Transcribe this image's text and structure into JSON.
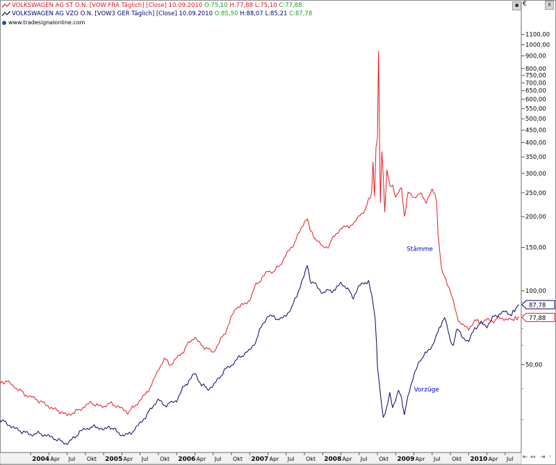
{
  "legend": [
    {
      "name": "VOLKSWAGEN AG ST O.N. [VOW FRA  Täglich] [Close]",
      "date": "10.09.2010",
      "open": "O:75,10",
      "high": "H:77,88",
      "low": "L:75,10",
      "close": "C:77,88",
      "color": "#e8141c",
      "close_color": "#1a9a1a"
    },
    {
      "name": "VOLKSWAGEN AG VZO O.N. [VOW3 GER  Täglich] [Close]",
      "date": "10.09.2010",
      "open": "O:85,50",
      "high": "H:88,07",
      "low": "L:85,21",
      "close": "C:87,78",
      "color": "#000066",
      "close_color": "#1a9a1a"
    }
  ],
  "source": "www.tradesignalonline.com",
  "currency": "€",
  "window": {
    "minimize": "▪",
    "close": "x"
  },
  "scroll": {
    "left": "⇤",
    "arrows": "↔",
    "right": "⇥",
    "handle": "◦"
  },
  "chart_data": {
    "type": "line",
    "title": "",
    "xlabel": "",
    "ylabel": "",
    "y_scale": "log",
    "ylim": [
      22,
      1500
    ],
    "xlim": [
      2003.58,
      2010.72
    ],
    "grid": false,
    "y_ticks": [
      {
        "v": 1100,
        "label": "1100,00"
      },
      {
        "v": 1000,
        "label": "1000,00"
      },
      {
        "v": 900,
        "label": "900,00"
      },
      {
        "v": 800,
        "label": "800,00"
      },
      {
        "v": 750,
        "label": "750,00"
      },
      {
        "v": 700,
        "label": "700,00"
      },
      {
        "v": 650,
        "label": "650,00"
      },
      {
        "v": 600,
        "label": "600,00"
      },
      {
        "v": 550,
        "label": "550,00"
      },
      {
        "v": 500,
        "label": "500,00"
      },
      {
        "v": 450,
        "label": "450,00"
      },
      {
        "v": 400,
        "label": "400,00"
      },
      {
        "v": 350,
        "label": "350,00"
      },
      {
        "v": 300,
        "label": "300,00"
      },
      {
        "v": 250,
        "label": "250,00"
      },
      {
        "v": 200,
        "label": "200,00"
      },
      {
        "v": 150,
        "label": "150,00"
      },
      {
        "v": 100,
        "label": "100,00"
      },
      {
        "v": 50,
        "label": "50,00"
      }
    ],
    "x_ticks": [
      {
        "v": 2004.0,
        "label": "2004",
        "bold": true
      },
      {
        "v": 2004.25,
        "label": "Apr"
      },
      {
        "v": 2004.5,
        "label": "Jul"
      },
      {
        "v": 2004.75,
        "label": "Okt"
      },
      {
        "v": 2005.0,
        "label": "2005",
        "bold": true
      },
      {
        "v": 2005.25,
        "label": "Apr"
      },
      {
        "v": 2005.5,
        "label": "Jul"
      },
      {
        "v": 2005.75,
        "label": "Okt"
      },
      {
        "v": 2006.0,
        "label": "2006",
        "bold": true
      },
      {
        "v": 2006.25,
        "label": "Apr"
      },
      {
        "v": 2006.5,
        "label": "Jul"
      },
      {
        "v": 2006.75,
        "label": "Okt"
      },
      {
        "v": 2007.0,
        "label": "2007",
        "bold": true
      },
      {
        "v": 2007.25,
        "label": "Apr"
      },
      {
        "v": 2007.5,
        "label": "Jul"
      },
      {
        "v": 2007.75,
        "label": "Okt"
      },
      {
        "v": 2008.0,
        "label": "2008",
        "bold": true
      },
      {
        "v": 2008.25,
        "label": "Apr"
      },
      {
        "v": 2008.5,
        "label": "Jul"
      },
      {
        "v": 2008.75,
        "label": "Okt"
      },
      {
        "v": 2009.0,
        "label": "2009",
        "bold": true
      },
      {
        "v": 2009.25,
        "label": "Apr"
      },
      {
        "v": 2009.5,
        "label": "Jul"
      },
      {
        "v": 2009.75,
        "label": "Okt"
      },
      {
        "v": 2010.0,
        "label": "2010",
        "bold": true
      },
      {
        "v": 2010.25,
        "label": "Apr"
      },
      {
        "v": 2010.5,
        "label": "Jul"
      }
    ],
    "series": [
      {
        "color": "#e8141c",
        "label": "Stämme",
        "label_at": [
          2009.15,
          145
        ],
        "last_value": 77.88,
        "last_label": "77,88",
        "points": [
          [
            2003.58,
            42
          ],
          [
            2003.67,
            43
          ],
          [
            2003.75,
            41
          ],
          [
            2003.83,
            40
          ],
          [
            2003.92,
            38
          ],
          [
            2004.0,
            37
          ],
          [
            2004.08,
            36
          ],
          [
            2004.17,
            35
          ],
          [
            2004.25,
            34
          ],
          [
            2004.33,
            33
          ],
          [
            2004.42,
            32
          ],
          [
            2004.5,
            31
          ],
          [
            2004.58,
            32
          ],
          [
            2004.67,
            33
          ],
          [
            2004.75,
            34
          ],
          [
            2004.83,
            35
          ],
          [
            2004.92,
            34
          ],
          [
            2005.0,
            34
          ],
          [
            2005.08,
            35
          ],
          [
            2005.17,
            34
          ],
          [
            2005.25,
            33
          ],
          [
            2005.33,
            32
          ],
          [
            2005.42,
            34
          ],
          [
            2005.5,
            36
          ],
          [
            2005.58,
            38
          ],
          [
            2005.67,
            42
          ],
          [
            2005.75,
            48
          ],
          [
            2005.83,
            53
          ],
          [
            2005.92,
            50
          ],
          [
            2006.0,
            53
          ],
          [
            2006.08,
            56
          ],
          [
            2006.17,
            62
          ],
          [
            2006.25,
            65
          ],
          [
            2006.33,
            60
          ],
          [
            2006.42,
            58
          ],
          [
            2006.5,
            56
          ],
          [
            2006.58,
            62
          ],
          [
            2006.67,
            68
          ],
          [
            2006.75,
            78
          ],
          [
            2006.83,
            86
          ],
          [
            2006.92,
            88
          ],
          [
            2007.0,
            92
          ],
          [
            2007.08,
            105
          ],
          [
            2007.17,
            112
          ],
          [
            2007.25,
            120
          ],
          [
            2007.33,
            120
          ],
          [
            2007.42,
            128
          ],
          [
            2007.5,
            140
          ],
          [
            2007.58,
            150
          ],
          [
            2007.67,
            170
          ],
          [
            2007.75,
            192
          ],
          [
            2007.79,
            198
          ],
          [
            2007.83,
            175
          ],
          [
            2007.92,
            160
          ],
          [
            2008.0,
            150
          ],
          [
            2008.08,
            152
          ],
          [
            2008.17,
            170
          ],
          [
            2008.25,
            178
          ],
          [
            2008.33,
            182
          ],
          [
            2008.42,
            185
          ],
          [
            2008.5,
            205
          ],
          [
            2008.58,
            210
          ],
          [
            2008.62,
            230
          ],
          [
            2008.67,
            250
          ],
          [
            2008.69,
            330
          ],
          [
            2008.71,
            240
          ],
          [
            2008.73,
            380
          ],
          [
            2008.75,
            420
          ],
          [
            2008.765,
            930
          ],
          [
            2008.78,
            400
          ],
          [
            2008.79,
            230
          ],
          [
            2008.81,
            370
          ],
          [
            2008.83,
            290
          ],
          [
            2008.85,
            210
          ],
          [
            2008.88,
            310
          ],
          [
            2008.92,
            270
          ],
          [
            2008.96,
            270
          ],
          [
            2009.0,
            240
          ],
          [
            2009.08,
            260
          ],
          [
            2009.12,
            200
          ],
          [
            2009.17,
            250
          ],
          [
            2009.25,
            240
          ],
          [
            2009.33,
            250
          ],
          [
            2009.42,
            230
          ],
          [
            2009.5,
            255
          ],
          [
            2009.54,
            245
          ],
          [
            2009.56,
            230
          ],
          [
            2009.58,
            170
          ],
          [
            2009.63,
            120
          ],
          [
            2009.67,
            115
          ],
          [
            2009.75,
            100
          ],
          [
            2009.79,
            90
          ],
          [
            2009.83,
            80
          ],
          [
            2009.88,
            74
          ],
          [
            2009.92,
            72
          ],
          [
            2010.0,
            70
          ],
          [
            2010.08,
            76
          ],
          [
            2010.17,
            74
          ],
          [
            2010.25,
            76
          ],
          [
            2010.33,
            75
          ],
          [
            2010.42,
            78
          ],
          [
            2010.5,
            77
          ],
          [
            2010.58,
            76
          ],
          [
            2010.69,
            77.88
          ]
        ]
      },
      {
        "color": "#000066",
        "label": "Vorzüge",
        "label_at": [
          2009.25,
          39
        ],
        "last_value": 87.78,
        "last_label": "87,78",
        "points": [
          [
            2003.58,
            30
          ],
          [
            2003.67,
            29
          ],
          [
            2003.75,
            28
          ],
          [
            2003.83,
            27
          ],
          [
            2003.92,
            26.5
          ],
          [
            2004.0,
            26
          ],
          [
            2004.08,
            26.5
          ],
          [
            2004.17,
            26
          ],
          [
            2004.25,
            25.5
          ],
          [
            2004.33,
            25
          ],
          [
            2004.42,
            24.5
          ],
          [
            2004.5,
            24
          ],
          [
            2004.58,
            25
          ],
          [
            2004.67,
            26.5
          ],
          [
            2004.75,
            27.5
          ],
          [
            2004.83,
            28
          ],
          [
            2004.92,
            28
          ],
          [
            2005.0,
            27
          ],
          [
            2005.08,
            28
          ],
          [
            2005.17,
            27
          ],
          [
            2005.25,
            26
          ],
          [
            2005.33,
            26
          ],
          [
            2005.42,
            27
          ],
          [
            2005.5,
            29
          ],
          [
            2005.58,
            31
          ],
          [
            2005.67,
            34
          ],
          [
            2005.75,
            36
          ],
          [
            2005.83,
            34
          ],
          [
            2005.92,
            35
          ],
          [
            2006.0,
            36
          ],
          [
            2006.08,
            40
          ],
          [
            2006.17,
            43
          ],
          [
            2006.25,
            46
          ],
          [
            2006.33,
            42
          ],
          [
            2006.42,
            40
          ],
          [
            2006.5,
            41
          ],
          [
            2006.58,
            44
          ],
          [
            2006.67,
            48
          ],
          [
            2006.75,
            50
          ],
          [
            2006.83,
            53
          ],
          [
            2006.92,
            55
          ],
          [
            2007.0,
            57
          ],
          [
            2007.08,
            62
          ],
          [
            2007.17,
            73
          ],
          [
            2007.25,
            79
          ],
          [
            2007.33,
            78
          ],
          [
            2007.42,
            76
          ],
          [
            2007.5,
            80
          ],
          [
            2007.58,
            86
          ],
          [
            2007.67,
            100
          ],
          [
            2007.75,
            115
          ],
          [
            2007.79,
            127
          ],
          [
            2007.83,
            110
          ],
          [
            2007.92,
            105
          ],
          [
            2008.0,
            98
          ],
          [
            2008.08,
            100
          ],
          [
            2008.17,
            100
          ],
          [
            2008.25,
            108
          ],
          [
            2008.33,
            103
          ],
          [
            2008.42,
            94
          ],
          [
            2008.5,
            104
          ],
          [
            2008.58,
            108
          ],
          [
            2008.63,
            108
          ],
          [
            2008.67,
            96
          ],
          [
            2008.71,
            82
          ],
          [
            2008.73,
            68
          ],
          [
            2008.75,
            50
          ],
          [
            2008.79,
            38
          ],
          [
            2008.83,
            30
          ],
          [
            2008.88,
            34
          ],
          [
            2008.92,
            38
          ],
          [
            2008.96,
            33
          ],
          [
            2009.0,
            36
          ],
          [
            2009.04,
            40
          ],
          [
            2009.08,
            37
          ],
          [
            2009.12,
            31
          ],
          [
            2009.17,
            38
          ],
          [
            2009.25,
            45
          ],
          [
            2009.33,
            52
          ],
          [
            2009.42,
            56
          ],
          [
            2009.5,
            60
          ],
          [
            2009.58,
            68
          ],
          [
            2009.63,
            74
          ],
          [
            2009.67,
            78
          ],
          [
            2009.71,
            70
          ],
          [
            2009.75,
            62
          ],
          [
            2009.79,
            60
          ],
          [
            2009.83,
            70
          ],
          [
            2009.88,
            68
          ],
          [
            2009.92,
            65
          ],
          [
            2010.0,
            62
          ],
          [
            2010.08,
            70
          ],
          [
            2010.17,
            74
          ],
          [
            2010.25,
            72
          ],
          [
            2010.33,
            78
          ],
          [
            2010.42,
            80
          ],
          [
            2010.5,
            82
          ],
          [
            2010.58,
            80
          ],
          [
            2010.69,
            87.78
          ]
        ]
      }
    ]
  }
}
